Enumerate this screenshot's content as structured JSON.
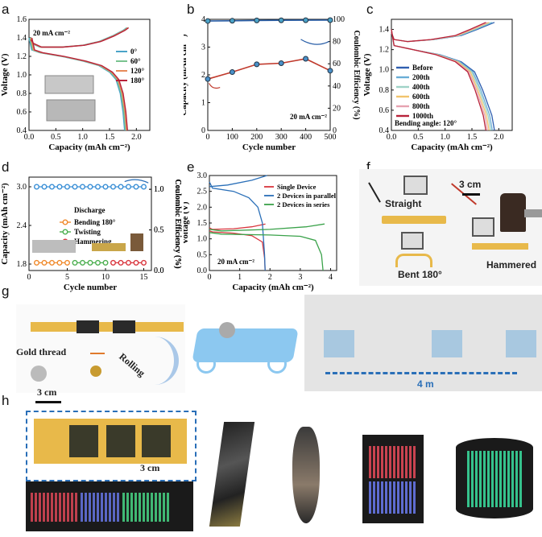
{
  "panels": {
    "a": "a",
    "b": "b",
    "c": "c",
    "d": "d",
    "e": "e",
    "f": "f",
    "g": "g",
    "h": "h"
  },
  "chart_data": [
    {
      "id": "a",
      "type": "line",
      "xlabel": "Capacity (mAh cm⁻²)",
      "ylabel": "Voltage (V)",
      "xlim": [
        0,
        2.25
      ],
      "ylim": [
        0.4,
        1.6
      ],
      "xticks": [
        "0.0",
        "0.5",
        "1.0",
        "1.5",
        "2.0"
      ],
      "yticks": [
        "0.4",
        "0.6",
        "0.8",
        "1.0",
        "1.2",
        "1.4",
        "1.6"
      ],
      "annotation": "20 mA cm⁻²",
      "legend_position": "right",
      "series": [
        {
          "name": "0°",
          "color": "#4aa3c8"
        },
        {
          "name": "60°",
          "color": "#79c38f"
        },
        {
          "name": "120°",
          "color": "#e78b5a"
        },
        {
          "name": "180°",
          "color": "#b8233a"
        }
      ],
      "charge": [
        [
          0,
          1.38
        ],
        [
          0.05,
          1.34
        ],
        [
          0.2,
          1.3
        ],
        [
          0.6,
          1.3
        ],
        [
          1.0,
          1.32
        ],
        [
          1.3,
          1.36
        ],
        [
          1.55,
          1.42
        ],
        [
          1.75,
          1.48
        ],
        [
          1.82,
          1.51
        ]
      ],
      "discharge": [
        [
          0,
          1.4
        ],
        [
          0.05,
          1.27
        ],
        [
          0.2,
          1.24
        ],
        [
          0.6,
          1.2
        ],
        [
          1.0,
          1.15
        ],
        [
          1.3,
          1.1
        ],
        [
          1.5,
          1.03
        ],
        [
          1.62,
          0.95
        ],
        [
          1.7,
          0.8
        ],
        [
          1.75,
          0.6
        ],
        [
          1.78,
          0.4
        ]
      ]
    },
    {
      "id": "b",
      "type": "line",
      "xlabel": "Cycle number",
      "ylabel": "Capacity (mAh cm⁻²)",
      "y2label": "Coulombic Efficiency (%)",
      "xlim": [
        0,
        500
      ],
      "ylim": [
        0,
        4
      ],
      "y2lim": [
        0,
        100
      ],
      "xticks": [
        "0",
        "100",
        "200",
        "300",
        "400",
        "500"
      ],
      "yticks": [
        "0",
        "1",
        "2",
        "3",
        "4"
      ],
      "y2ticks": [
        "0",
        "20",
        "40",
        "60",
        "80",
        "100"
      ],
      "annotation": "20 mA cm⁻²",
      "x": [
        0,
        100,
        200,
        300,
        400,
        500
      ],
      "series": [
        {
          "axis": "left",
          "color": "#c0392b",
          "marker": "#4a90c8",
          "values": [
            1.85,
            2.1,
            2.38,
            2.42,
            2.58,
            2.15
          ]
        },
        {
          "axis": "right",
          "color": "#2a5fa8",
          "marker": "#4aa3c8",
          "values": [
            98.5,
            98.7,
            99.0,
            99.1,
            99.2,
            99.3
          ]
        }
      ]
    },
    {
      "id": "c",
      "type": "line",
      "xlabel": "Capacity (mAh cm⁻²)",
      "ylabel": "Voltage (V)",
      "xlim": [
        0,
        2.25
      ],
      "ylim": [
        0.4,
        1.5
      ],
      "xticks": [
        "0.0",
        "0.5",
        "1.0",
        "1.5",
        "2.0"
      ],
      "yticks": [
        "0.4",
        "0.6",
        "0.8",
        "1.0",
        "1.2",
        "1.4"
      ],
      "annotation": "Bending angle: 120°",
      "legend_position": "left",
      "series": [
        {
          "name": "Before",
          "color": "#2f5fb0",
          "end": 1.92
        },
        {
          "name": "200th",
          "color": "#6aaed6",
          "end": 1.88
        },
        {
          "name": "400th",
          "color": "#9fd3c7",
          "end": 1.85
        },
        {
          "name": "600th",
          "color": "#f2c46d",
          "end": 1.82
        },
        {
          "name": "800th",
          "color": "#e6a3b0",
          "end": 1.79
        },
        {
          "name": "1000th",
          "color": "#b8233a",
          "end": 1.76
        }
      ]
    },
    {
      "id": "d",
      "type": "line",
      "xlabel": "Cycle number",
      "ylabel": "Capacity (mAh cm⁻²)",
      "y2label": "Coulombic Efficiency (%)",
      "xlim": [
        0,
        16
      ],
      "ylim": [
        1.7,
        3.15
      ],
      "y2lim": [
        0,
        1.15
      ],
      "xticks": [
        "0",
        "5",
        "10",
        "15"
      ],
      "yticks": [
        "1.8",
        "2.4",
        "3.0"
      ],
      "y2ticks": [
        "0.0",
        "0.5",
        "1.0"
      ],
      "legend_title": "Discharge",
      "series": [
        {
          "name": "Bending 180°",
          "color": "#f08a2c",
          "x": [
            1,
            2,
            3,
            4,
            5
          ],
          "values": [
            1.82,
            1.82,
            1.82,
            1.82,
            1.82
          ]
        },
        {
          "name": "Twisting",
          "color": "#4caf50",
          "x": [
            6,
            7,
            8,
            9,
            10
          ],
          "values": [
            1.82,
            1.82,
            1.82,
            1.82,
            1.82
          ]
        },
        {
          "name": "Hammering",
          "color": "#d9363e",
          "x": [
            11,
            12,
            13,
            14,
            15
          ],
          "values": [
            1.82,
            1.82,
            1.82,
            1.82,
            1.82
          ]
        },
        {
          "name": "",
          "color": "#3a8fd6",
          "x": [
            1,
            2,
            3,
            4,
            5,
            6,
            7,
            8,
            9,
            10,
            11,
            12,
            13,
            14,
            15
          ],
          "values": [
            3.0,
            3.0,
            3.0,
            3.0,
            3.0,
            3.0,
            3.0,
            3.0,
            3.0,
            3.0,
            3.0,
            3.0,
            3.0,
            3.0,
            3.0
          ]
        }
      ]
    },
    {
      "id": "e",
      "type": "line",
      "xlabel": "Capacity (mAh cm⁻²)",
      "ylabel": "Voltage (V)",
      "xlim": [
        0,
        4.2
      ],
      "ylim": [
        0,
        3.0
      ],
      "xticks": [
        "0",
        "1",
        "2",
        "3",
        "4"
      ],
      "yticks": [
        "0.0",
        "0.5",
        "1.0",
        "1.5",
        "2.0",
        "2.5",
        "3.0"
      ],
      "annotation": "20 mA cm⁻²",
      "series": [
        {
          "name": "Single Device",
          "color": "#d9363e"
        },
        {
          "name": "2 Devices in parallel",
          "color": "#2a6fb8"
        },
        {
          "name": "2 Devices in series",
          "color": "#3aa24a"
        }
      ]
    }
  ],
  "photos": {
    "f_straight": "Straight",
    "f_bent": "Bent 180°",
    "f_hammered": "Hammered",
    "f_scale": "3 cm",
    "g_gold": "Gold thread",
    "g_rolling": "Rolling",
    "g_distance": "4 m",
    "h_scale1": "3 cm",
    "h_scale2": "3 cm"
  }
}
